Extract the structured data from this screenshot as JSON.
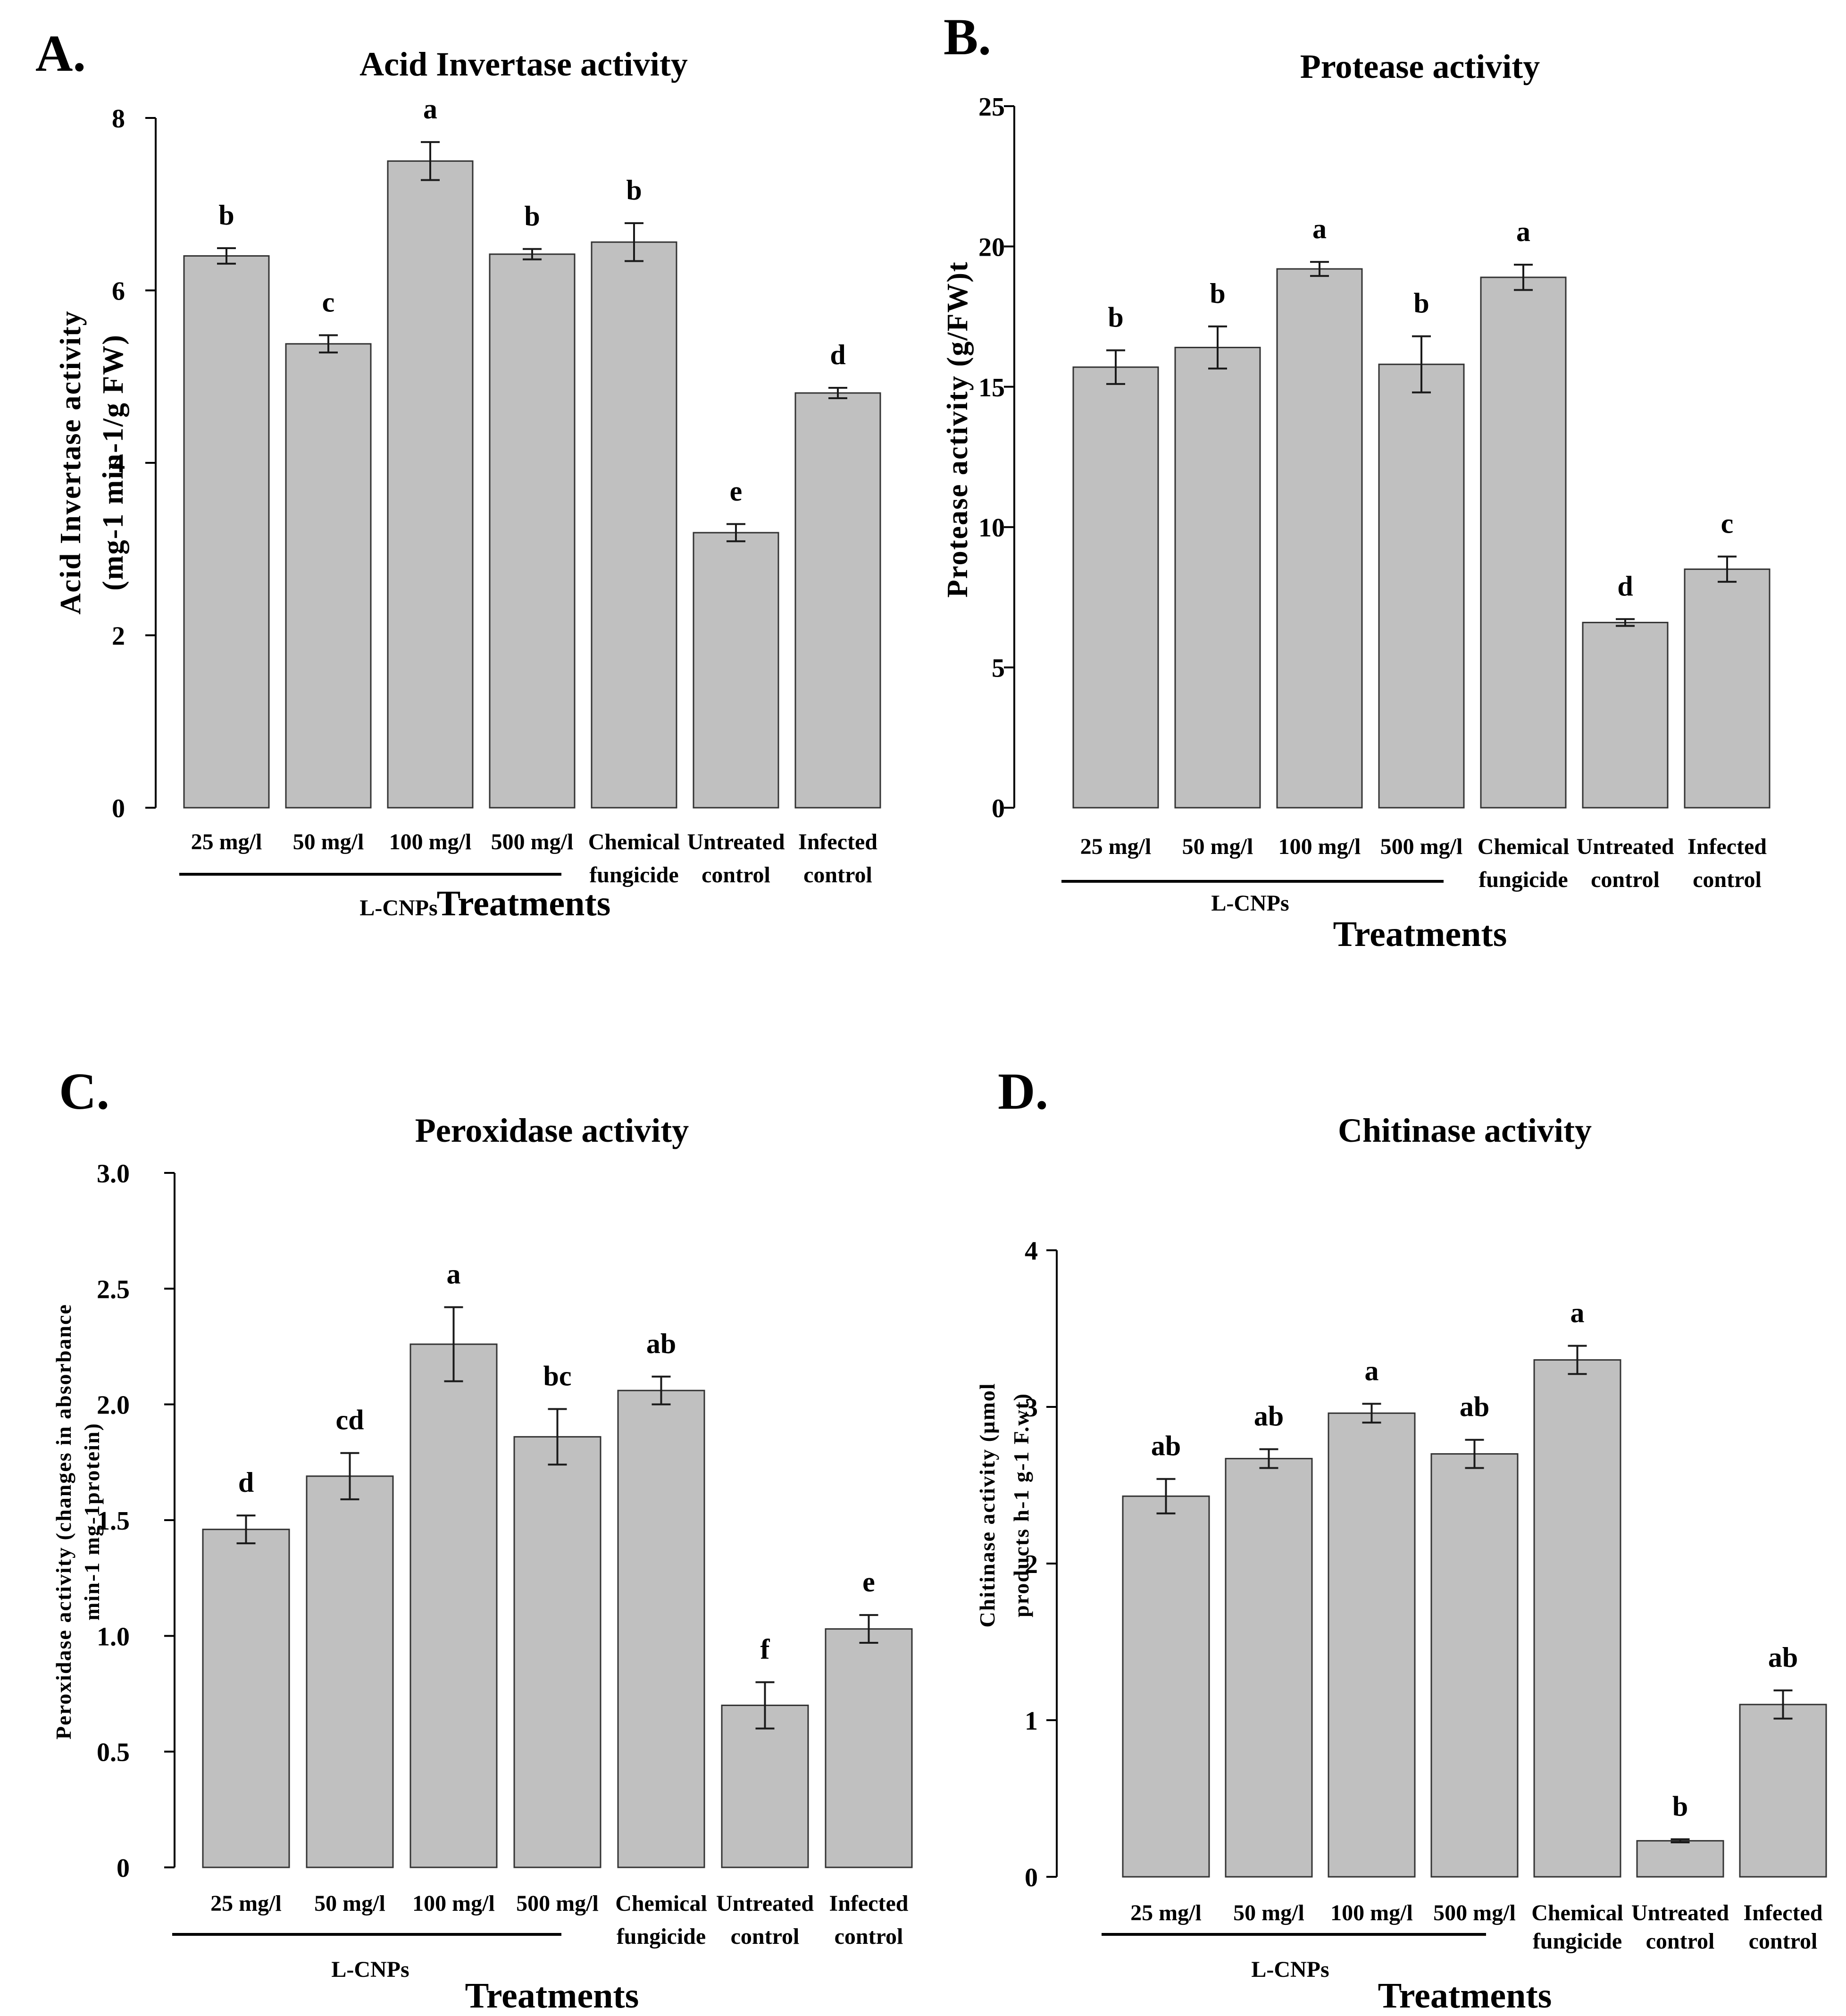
{
  "chart_data": [
    {
      "type": "bar",
      "panel": "A.",
      "title": "Acid Invertase activity",
      "ylabel_lines": [
        "Acid Invertase activity",
        "(mg-1 min-1/g FW)"
      ],
      "xlabel": "Treatments",
      "group_label": "L-CNPs",
      "categories": [
        [
          "25 mg/l"
        ],
        [
          "50 mg/l"
        ],
        [
          "100 mg/l"
        ],
        [
          "500 mg/l"
        ],
        [
          "Chemical",
          "fungicide"
        ],
        [
          "Untreated",
          "control"
        ],
        [
          "Infected",
          "control"
        ]
      ],
      "values": [
        6.4,
        5.38,
        7.5,
        6.42,
        6.56,
        3.19,
        4.81
      ],
      "errors": [
        0.09,
        0.1,
        0.22,
        0.06,
        0.22,
        0.1,
        0.06
      ],
      "letters": [
        "b",
        "c",
        "a",
        "b",
        "b",
        "e",
        "d"
      ],
      "ylim": [
        0,
        8
      ],
      "yticks": [
        0,
        2,
        4,
        6,
        8
      ],
      "ytick_labels": [
        "0",
        "2",
        "4",
        "6",
        "8"
      ]
    },
    {
      "type": "bar",
      "panel": "B.",
      "title": "Protease activity",
      "ylabel_lines": [
        "Protease activity (g/FW)t"
      ],
      "xlabel": "Treatments",
      "group_label": "L-CNPs",
      "categories": [
        [
          "25 mg/l"
        ],
        [
          "50 mg/l"
        ],
        [
          "100 mg/l"
        ],
        [
          "500 mg/l"
        ],
        [
          "Chemical",
          "fungicide"
        ],
        [
          "Untreated",
          "control"
        ],
        [
          "Infected",
          "control"
        ]
      ],
      "values": [
        15.7,
        16.4,
        19.2,
        15.8,
        18.9,
        6.6,
        8.5
      ],
      "errors": [
        0.6,
        0.75,
        0.25,
        1.0,
        0.45,
        0.12,
        0.45
      ],
      "letters": [
        "b",
        "b",
        "a",
        "b",
        "a",
        "d",
        "c"
      ],
      "ylim": [
        0,
        25
      ],
      "yticks": [
        0,
        5,
        10,
        15,
        20,
        25
      ],
      "ytick_labels": [
        "0",
        "5",
        "10",
        "15",
        "20",
        "25"
      ]
    },
    {
      "type": "bar",
      "panel": "C.",
      "title": "Peroxidase activity",
      "ylabel_lines": [
        "Peroxidase activity (changes in absorbance",
        "min-1 mg-1protein)"
      ],
      "xlabel": "Treatments",
      "group_label": "L-CNPs",
      "categories": [
        [
          "25 mg/l"
        ],
        [
          "50 mg/l"
        ],
        [
          "100 mg/l"
        ],
        [
          "500 mg/l"
        ],
        [
          "Chemical",
          "fungicide"
        ],
        [
          "Untreated",
          "control"
        ],
        [
          "Infected",
          "control"
        ]
      ],
      "values": [
        1.46,
        1.69,
        2.26,
        1.86,
        2.06,
        0.7,
        1.03
      ],
      "errors": [
        0.06,
        0.1,
        0.16,
        0.12,
        0.06,
        0.1,
        0.06
      ],
      "letters": [
        "d",
        "cd",
        "a",
        "bc",
        "ab",
        "f",
        "e"
      ],
      "ylim": [
        0,
        3
      ],
      "yticks": [
        0,
        0.5,
        1.0,
        1.5,
        2.0,
        2.5,
        3.0
      ],
      "ytick_labels": [
        "0",
        "0.5",
        "1.0",
        "1.5",
        "2.0",
        "2.5",
        "3.0"
      ]
    },
    {
      "type": "bar",
      "panel": "D.",
      "title": "Chitinase activity",
      "ylabel_lines": [
        "Chitinase activity (µmol",
        "products h-1 g-1 F.wt)"
      ],
      "xlabel": "Treatments",
      "group_label": "L-CNPs",
      "categories": [
        [
          "25 mg/l"
        ],
        [
          "50 mg/l"
        ],
        [
          "100 mg/l"
        ],
        [
          "500 mg/l"
        ],
        [
          "Chemical",
          "fungicide"
        ],
        [
          "Untreated",
          "control"
        ],
        [
          "Infected",
          "control"
        ]
      ],
      "values": [
        2.43,
        2.67,
        2.96,
        2.7,
        3.3,
        0.23,
        1.1
      ],
      "errors": [
        0.11,
        0.06,
        0.06,
        0.09,
        0.09,
        0.01,
        0.09
      ],
      "letters": [
        "ab",
        "ab",
        "a",
        "ab",
        "a",
        "b",
        "ab"
      ],
      "ylim": [
        0,
        4
      ],
      "yticks": [
        0,
        1,
        2,
        3,
        4
      ],
      "ytick_labels": [
        "0",
        "1",
        "2",
        "3",
        "4"
      ]
    }
  ]
}
